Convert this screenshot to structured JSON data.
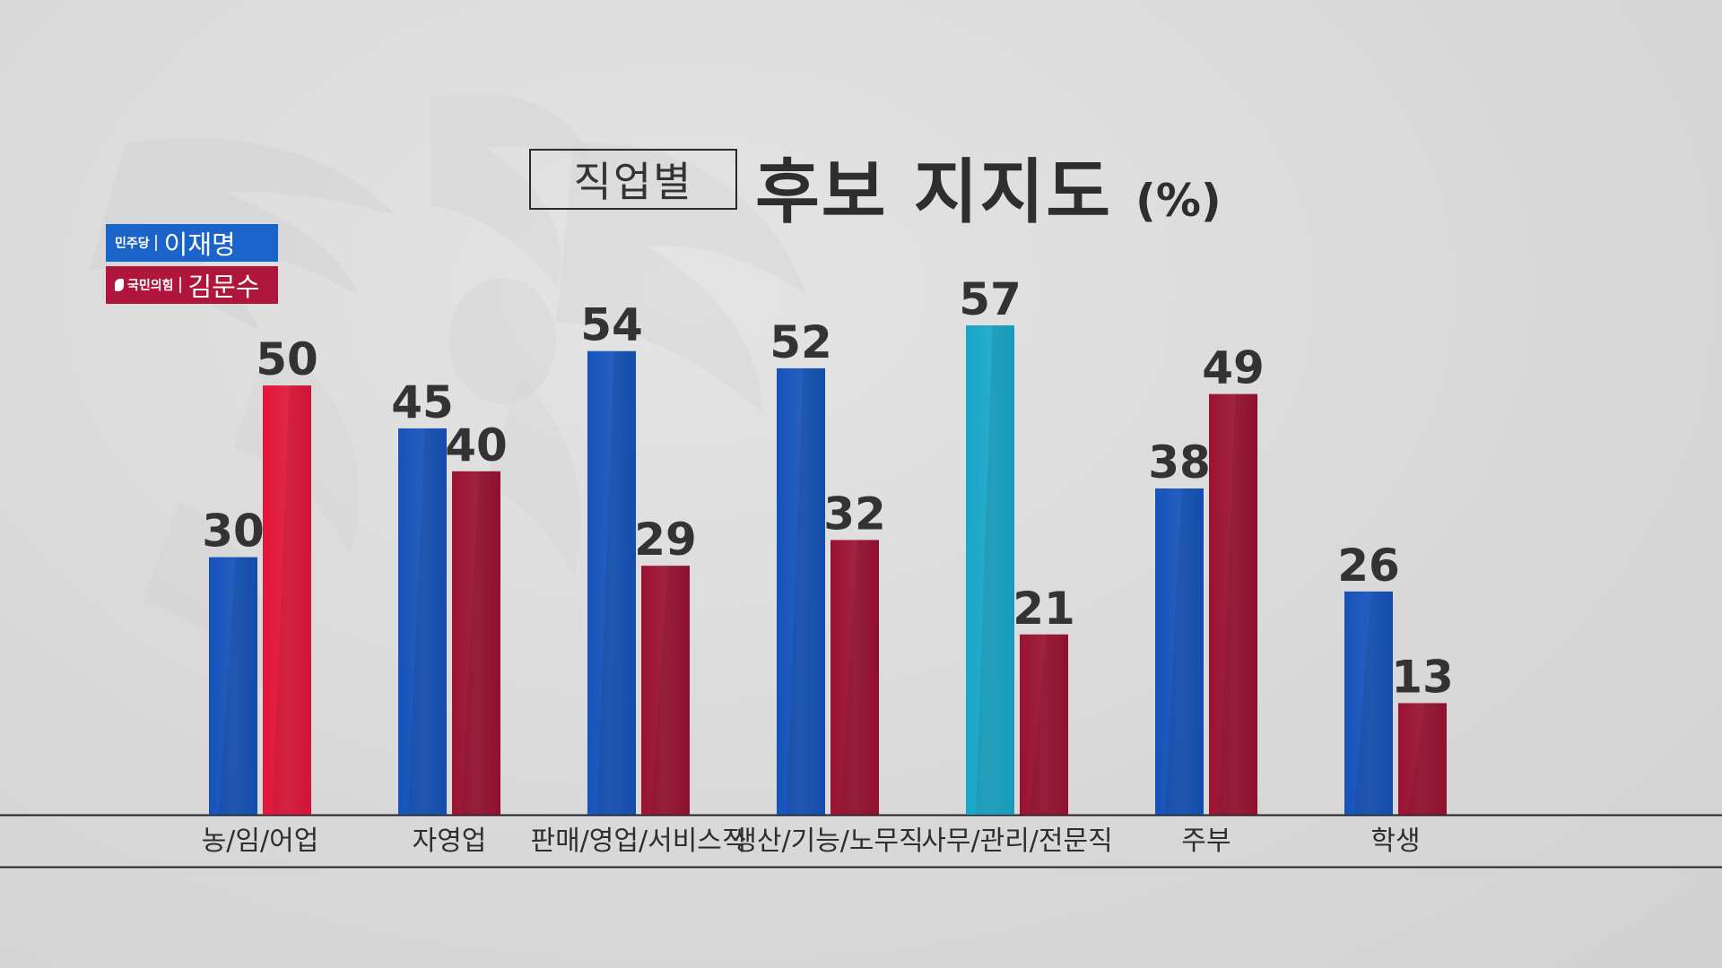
{
  "title": {
    "box_text": "직업별",
    "main_text": "후보 지지도",
    "unit_text": "(%)"
  },
  "legend": [
    {
      "party": "민주당",
      "name": "이재명",
      "color": "#1a5bc4"
    },
    {
      "party": "국민의힘",
      "name": "김문수",
      "color": "#a0143a"
    }
  ],
  "colors": {
    "blue": "#1553bb",
    "red": "#9b1232",
    "highlight_blue": "#17a7c9",
    "highlight_red": "#e2163b",
    "text": "#333333",
    "axis": "#222222"
  },
  "chart_data": {
    "type": "bar",
    "categories": [
      "농/임/어업",
      "자영업",
      "판매/영업/서비스직",
      "생산/기능/노무직",
      "사무/관리/전문직",
      "주부",
      "학생"
    ],
    "series": [
      {
        "name": "이재명",
        "values": [
          30,
          45,
          54,
          52,
          57,
          38,
          26
        ]
      },
      {
        "name": "김문수",
        "values": [
          50,
          40,
          29,
          32,
          21,
          49,
          13
        ]
      }
    ],
    "highlight": [
      {
        "series": 1,
        "category": 0
      },
      {
        "series": 0,
        "category": 4
      }
    ],
    "ylim": [
      0,
      57
    ],
    "grid": false,
    "legend_position": "top-left"
  }
}
